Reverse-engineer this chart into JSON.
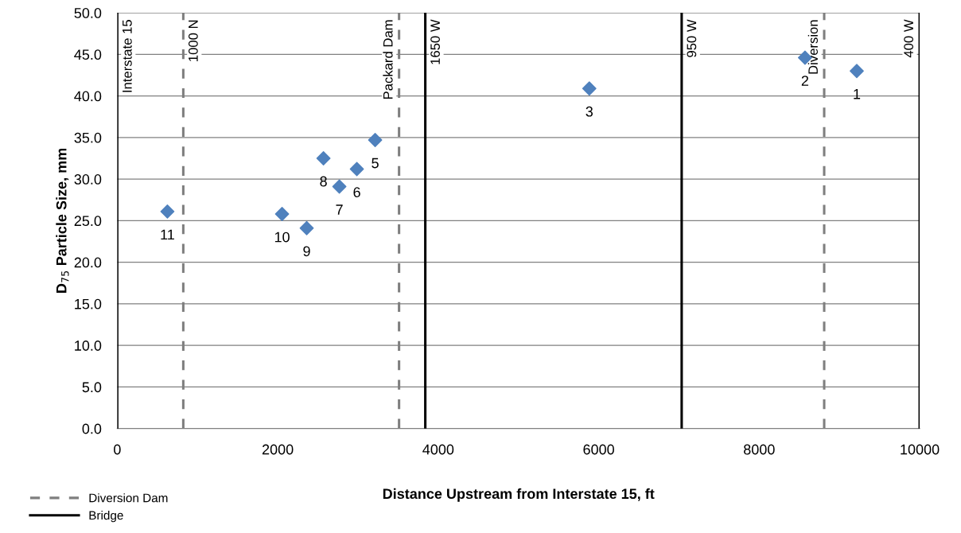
{
  "chart_data": {
    "type": "scatter",
    "xlabel": "Distance Upstream from Interstate 15, ft",
    "ylabel": "D$_{75}$ Particle Size, mm",
    "x": [
      625,
      2054,
      2361,
      2570,
      2768,
      2986,
      3214,
      5883,
      8571,
      9216
    ],
    "series": [
      {
        "type": "scatter",
        "color": "#4f81bd",
        "marker": "diamond",
        "values": [
          26.1,
          25.8,
          24.1,
          32.5,
          29.1,
          31.2,
          34.7,
          40.9,
          44.6,
          43.0
        ]
      }
    ],
    "annotations": [
      {
        "text": "11",
        "x": 625,
        "y": 26.1
      },
      {
        "text": "10",
        "x": 2054,
        "y": 25.8
      },
      {
        "text": "9",
        "x": 2361,
        "y": 24.1
      },
      {
        "text": "8",
        "x": 2570,
        "y": 32.5
      },
      {
        "text": "7",
        "x": 2768,
        "y": 29.1
      },
      {
        "text": "6",
        "x": 2986,
        "y": 31.2
      },
      {
        "text": "5",
        "x": 3214,
        "y": 34.7
      },
      {
        "text": "3",
        "x": 5883,
        "y": 40.9
      },
      {
        "text": "2",
        "x": 8571,
        "y": 44.6
      },
      {
        "text": "1",
        "x": 9216,
        "y": 43.0
      },
      "Diversion Dam",
      "Bridge"
    ],
    "ref_lines": [
      {
        "axis": "x",
        "value": 823,
        "label": "1000 N",
        "color": "#7f7f7f",
        "line_style": "dashed"
      },
      {
        "axis": "x",
        "value": 0,
        "label": "Interstate 15",
        "color": "#000000",
        "line_style": "solid"
      },
      {
        "axis": "x",
        "value": 3512,
        "label": "Packard Dam",
        "color": "#7f7f7f",
        "line_style": "dashed"
      },
      {
        "axis": "x",
        "value": 3839,
        "label": "1650 W",
        "color": "#000000",
        "line_style": "solid"
      },
      {
        "axis": "x",
        "value": 7034,
        "label": "950 W",
        "color": "#000000",
        "line_style": "solid"
      },
      {
        "axis": "x",
        "value": 8810,
        "label": "Diversion",
        "color": "#7f7f7f",
        "line_style": "dashed"
      },
      {
        "axis": "x",
        "value": 10000,
        "label": "400 W",
        "color": "#000000",
        "line_style": "solid"
      }
    ],
    "xlim": [
      0,
      10000
    ],
    "xticks": [
      0,
      2000,
      4000,
      6000,
      8000,
      10000
    ],
    "ylim": [
      0,
      50
    ],
    "yticks": [
      {
        "value": 0,
        "label": "0.0"
      },
      {
        "value": 5,
        "label": "5.0"
      },
      {
        "value": 10,
        "label": "10.0"
      },
      {
        "value": 15,
        "label": "15.0"
      },
      {
        "value": 20,
        "label": "20.0"
      },
      {
        "value": 25,
        "label": "25.0"
      },
      {
        "value": 30,
        "label": "30.0"
      },
      {
        "value": 35,
        "label": "35.0"
      },
      {
        "value": 40,
        "label": "40.0"
      },
      {
        "value": 45,
        "label": "45.0"
      },
      {
        "value": 50,
        "label": "50.0"
      }
    ],
    "grid": "y"
  }
}
